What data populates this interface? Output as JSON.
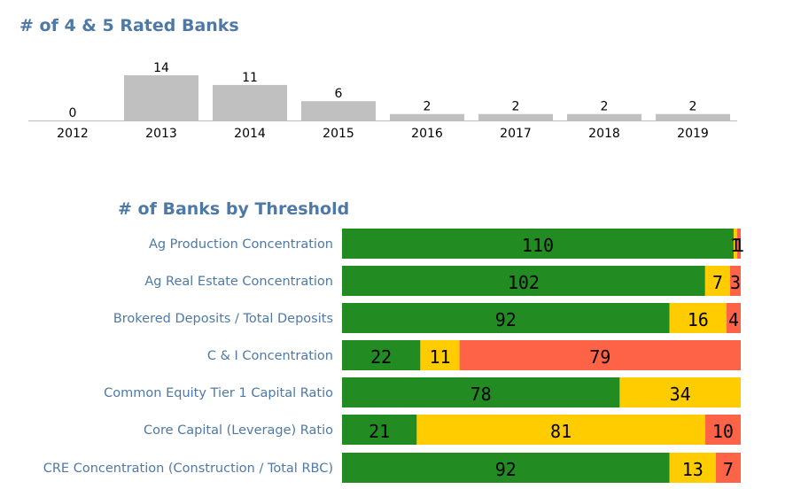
{
  "colors": {
    "bar_gray": "#c0c0c0",
    "axis": "#bdbdbd",
    "green": "#228b22",
    "yellow": "#ffcc00",
    "red": "#ff6347",
    "title": "#4e79a7"
  },
  "chart_data": [
    {
      "type": "bar",
      "title": "# of 4 & 5 Rated Banks",
      "categories": [
        "2012",
        "2013",
        "2014",
        "2015",
        "2016",
        "2017",
        "2018",
        "2019"
      ],
      "values": [
        0,
        14,
        11,
        6,
        2,
        2,
        2,
        2
      ],
      "ylim": [
        0,
        14
      ],
      "grid": false,
      "legend": "none"
    },
    {
      "type": "bar",
      "orientation": "horizontal",
      "stacked": true,
      "title": "# of Banks by Threshold",
      "categories": [
        "Ag Production Concentration",
        "Ag Real Estate Concentration",
        "Brokered Deposits / Total Deposits",
        "C & I Concentration",
        "Common Equity Tier 1 Capital Ratio",
        "Core Capital (Leverage) Ratio",
        "CRE Concentration (Construction / Total RBC)"
      ],
      "series": [
        {
          "color": "#228b22",
          "values": [
            110,
            102,
            92,
            22,
            78,
            21,
            92
          ]
        },
        {
          "color": "#ffcc00",
          "values": [
            1,
            7,
            16,
            11,
            34,
            81,
            13
          ]
        },
        {
          "color": "#ff6347",
          "values": [
            1,
            3,
            4,
            79,
            0,
            10,
            7
          ]
        }
      ],
      "grid": false,
      "legend": "none"
    }
  ]
}
